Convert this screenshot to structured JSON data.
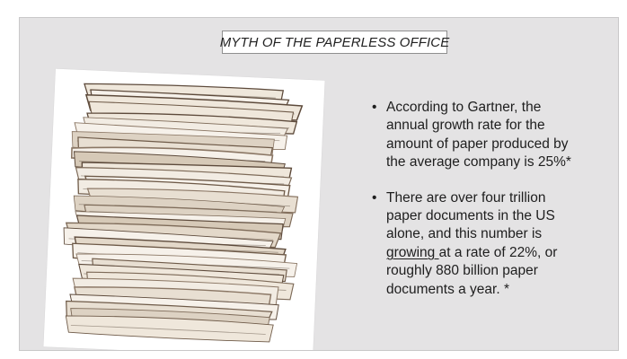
{
  "slide": {
    "title": "MYTH OF THE PAPERLESS OFFICE",
    "image": {
      "subject": "stack-of-papers"
    },
    "bullets": [
      {
        "marker": "•",
        "lines": [
          "According to Gartner, the",
          "annual growth rate for the",
          "amount of paper produced by",
          "the average company is 25%*"
        ]
      },
      {
        "marker": "•",
        "lines": [
          "There are over four trillion",
          "paper documents in the US",
          "alone, and this number is"
        ],
        "underlined": "growing ",
        "after_underlined": "at a rate of 22%, or",
        "tail_lines": [
          "roughly 880 billion paper",
          "documents a year. *"
        ]
      }
    ]
  },
  "colors": {
    "page_background": "#ffffff",
    "slide_background": "#e4e3e4",
    "title_box_border": "#8f8f8f",
    "text": "#1e1e1e"
  }
}
